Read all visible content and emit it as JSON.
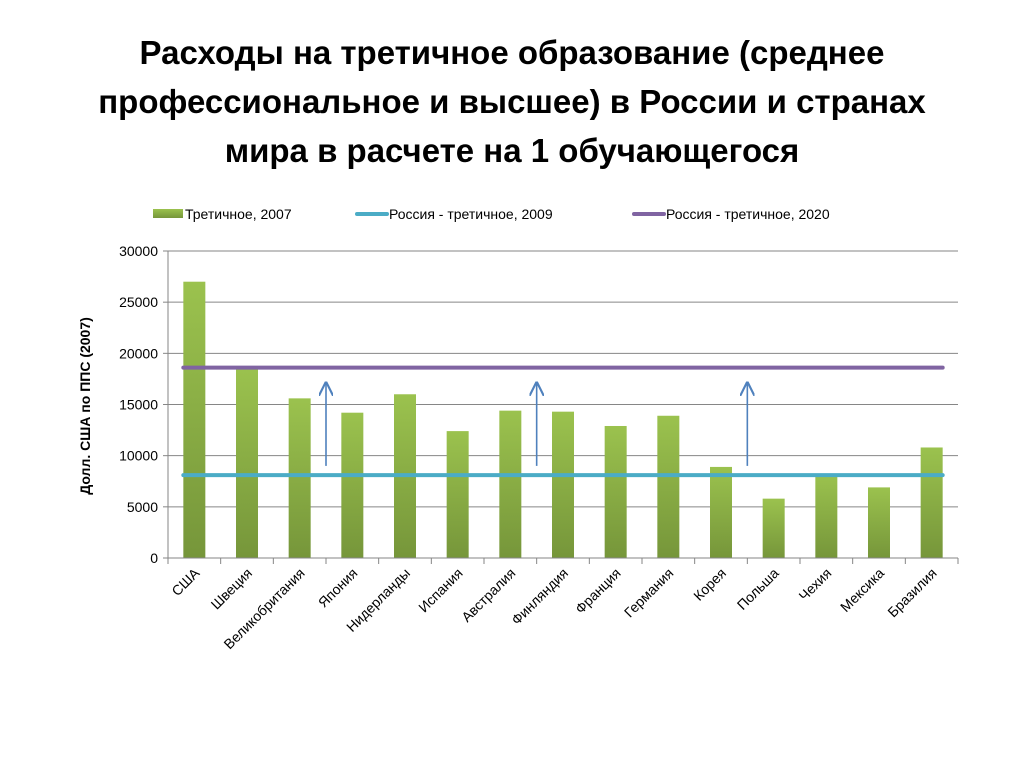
{
  "slide": {
    "title_lines": [
      "Расходы на третичное образование (среднее",
      "профессиональное и высшее) в России и странах",
      "мира в расчете на 1 обучающегося"
    ]
  },
  "chart_data": {
    "type": "bar",
    "title": "Расходы на третичное образование (среднее профессиональное и высшее) в России и странах мира в расчете на 1 обучающегося",
    "xlabel": "",
    "ylabel": "Долл. США по ППС (2007)",
    "ylim": [
      0,
      30000
    ],
    "yticks": [
      0,
      5000,
      10000,
      15000,
      20000,
      25000,
      30000
    ],
    "grid": true,
    "legend_position": "top",
    "categories": [
      "США",
      "Швеция",
      "Великобритания",
      "Япония",
      "Нидерланды",
      "Испания",
      "Австралия",
      "Финляндия",
      "Франция",
      "Германия",
      "Корея",
      "Польша",
      "Чехия",
      "Мексика",
      "Бразилия"
    ],
    "series": [
      {
        "name": "Третичное, 2007",
        "type": "bar",
        "color": "#8FB446",
        "values": [
          27000,
          18600,
          15600,
          14200,
          16000,
          12400,
          14400,
          14300,
          12900,
          13900,
          8900,
          5800,
          8100,
          6900,
          10800
        ]
      },
      {
        "name": "Россия - третичное, 2009",
        "type": "line",
        "color": "#4BACC6",
        "value": 8100
      },
      {
        "name": "Россия - третичное, 2020",
        "type": "line",
        "color": "#8064A2",
        "value": 18600
      }
    ],
    "annotations": {
      "arrows": {
        "color": "#4F81BD",
        "from": 9000,
        "to": 17100,
        "between": [
          [
            "Великобритания",
            "Япония"
          ],
          [
            "Австралия",
            "Финляндия"
          ],
          [
            "Корея",
            "Польша"
          ]
        ]
      }
    }
  }
}
